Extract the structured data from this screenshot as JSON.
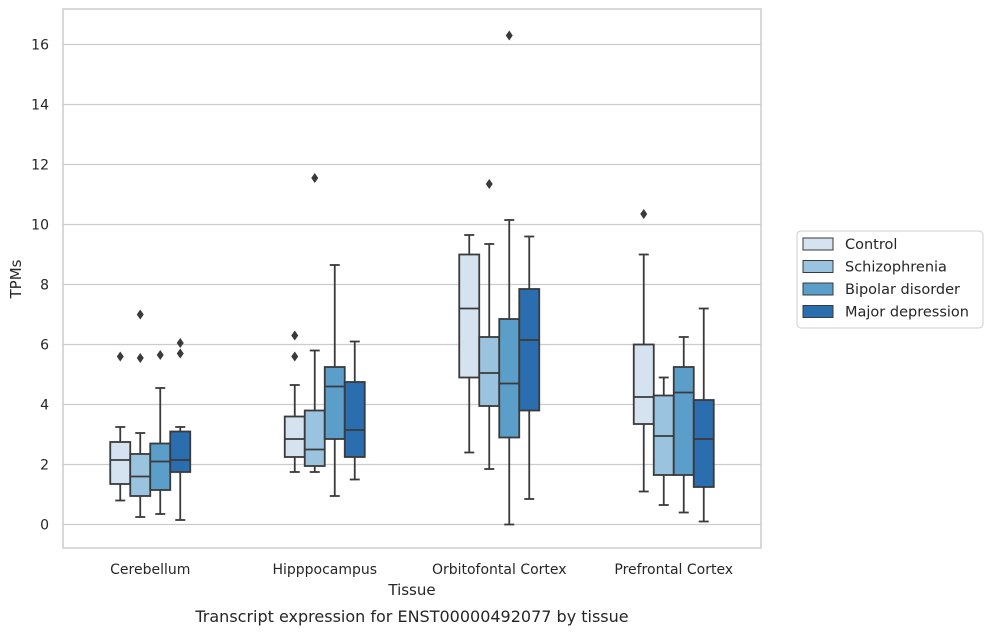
{
  "chart_data": {
    "type": "box",
    "title": "Transcript expression for ENST00000492077 by tissue",
    "xlabel": "Tissue",
    "ylabel": "TPMs",
    "ylim": [
      -0.8,
      17.2
    ],
    "yticks": [
      0,
      2,
      4,
      6,
      8,
      10,
      12,
      14,
      16
    ],
    "grid": "horizontal",
    "legend_position": "right",
    "categories": [
      "Cerebellum",
      "Hipppocampus",
      "Orbitofontal Cortex",
      "Prefrontal Cortex"
    ],
    "series": [
      {
        "name": "Control",
        "color": "#d5e3f1",
        "boxes": [
          {
            "whislo": 0.8,
            "q1": 1.35,
            "med": 2.15,
            "q3": 2.75,
            "whishi": 3.25,
            "fliers": [
              5.6
            ]
          },
          {
            "whislo": 1.75,
            "q1": 2.25,
            "med": 2.85,
            "q3": 3.6,
            "whishi": 4.65,
            "fliers": [
              5.6,
              6.3
            ]
          },
          {
            "whislo": 2.4,
            "q1": 4.9,
            "med": 7.2,
            "q3": 9.0,
            "whishi": 9.65,
            "fliers": []
          },
          {
            "whislo": 1.1,
            "q1": 3.35,
            "med": 4.25,
            "q3": 6.0,
            "whishi": 9.0,
            "fliers": [
              10.35
            ]
          }
        ]
      },
      {
        "name": "Schizophrenia",
        "color": "#9ac3df",
        "boxes": [
          {
            "whislo": 0.25,
            "q1": 0.95,
            "med": 1.6,
            "q3": 2.35,
            "whishi": 3.05,
            "fliers": [
              5.55,
              7.0
            ]
          },
          {
            "whislo": 1.75,
            "q1": 1.95,
            "med": 2.5,
            "q3": 3.8,
            "whishi": 5.8,
            "fliers": [
              11.55
            ]
          },
          {
            "whislo": 1.85,
            "q1": 3.95,
            "med": 5.05,
            "q3": 6.25,
            "whishi": 9.35,
            "fliers": [
              11.35
            ]
          },
          {
            "whislo": 0.65,
            "q1": 1.65,
            "med": 2.95,
            "q3": 4.3,
            "whishi": 4.9,
            "fliers": []
          }
        ]
      },
      {
        "name": "Bipolar disorder",
        "color": "#5b9ec9",
        "boxes": [
          {
            "whislo": 0.35,
            "q1": 1.15,
            "med": 2.1,
            "q3": 2.7,
            "whishi": 4.55,
            "fliers": [
              5.65
            ]
          },
          {
            "whislo": 0.95,
            "q1": 2.85,
            "med": 4.6,
            "q3": 5.25,
            "whishi": 8.65,
            "fliers": []
          },
          {
            "whislo": 0.0,
            "q1": 2.9,
            "med": 4.7,
            "q3": 6.85,
            "whishi": 10.15,
            "fliers": [
              16.3
            ]
          },
          {
            "whislo": 0.4,
            "q1": 1.65,
            "med": 4.4,
            "q3": 5.25,
            "whishi": 6.25,
            "fliers": []
          }
        ]
      },
      {
        "name": "Major depression",
        "color": "#2a6eb0",
        "boxes": [
          {
            "whislo": 0.15,
            "q1": 1.75,
            "med": 2.15,
            "q3": 3.1,
            "whishi": 3.25,
            "fliers": [
              5.7,
              6.05
            ]
          },
          {
            "whislo": 1.5,
            "q1": 2.25,
            "med": 3.15,
            "q3": 4.75,
            "whishi": 6.1,
            "fliers": []
          },
          {
            "whislo": 0.85,
            "q1": 3.8,
            "med": 6.15,
            "q3": 7.85,
            "whishi": 9.6,
            "fliers": []
          },
          {
            "whislo": 0.1,
            "q1": 1.25,
            "med": 2.85,
            "q3": 4.15,
            "whishi": 7.2,
            "fliers": []
          }
        ]
      }
    ]
  }
}
